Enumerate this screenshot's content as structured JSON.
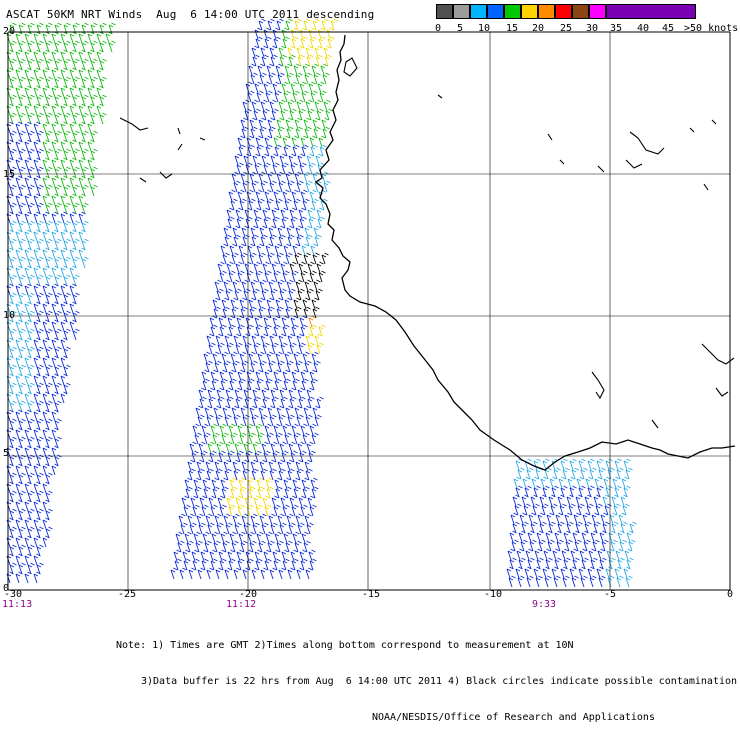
{
  "title": "ASCAT 50KM NRT Winds  Aug  6 14:00 UTC 2011 descending",
  "legend": {
    "labels": [
      "0",
      "5",
      "10",
      "15",
      "20",
      "25",
      "30",
      "35",
      "40",
      "45",
      ">50 knots"
    ],
    "colors": [
      "#505050",
      "#9c9c9c",
      "#00b4ff",
      "#0064ff",
      "#00c800",
      "#ffd200",
      "#ff8c00",
      "#ff0000",
      "#8b4513",
      "#ff00ff",
      "#7a00b4"
    ]
  },
  "axes": {
    "y_labels": [
      "20",
      "15",
      "10",
      "5",
      "0"
    ],
    "x_labels": [
      "-30",
      "-25",
      "-20",
      "-15",
      "-10",
      "-5",
      "0"
    ]
  },
  "pass_times": [
    "11:13",
    "11:12",
    "9:33"
  ],
  "notes": [
    "Note: 1) Times are GMT 2)Times along bottom correspond to measurement at 10N",
    "3)Data buffer is 22 hrs from Aug  6 14:00 UTC 2011 4) Black circles indicate possible contamination",
    "NOAA/NESDIS/Office of Research and Applications"
  ],
  "colors": {
    "coast": "#000000",
    "grid": "#000000",
    "blue": "#0a2ad8",
    "cyan": "#29a9e6",
    "green": "#12b812",
    "yellow": "#f0d800",
    "orange": "#ff7a00",
    "red": "#e80000",
    "black": "#000000",
    "time_label": "#8b0a8b"
  }
}
